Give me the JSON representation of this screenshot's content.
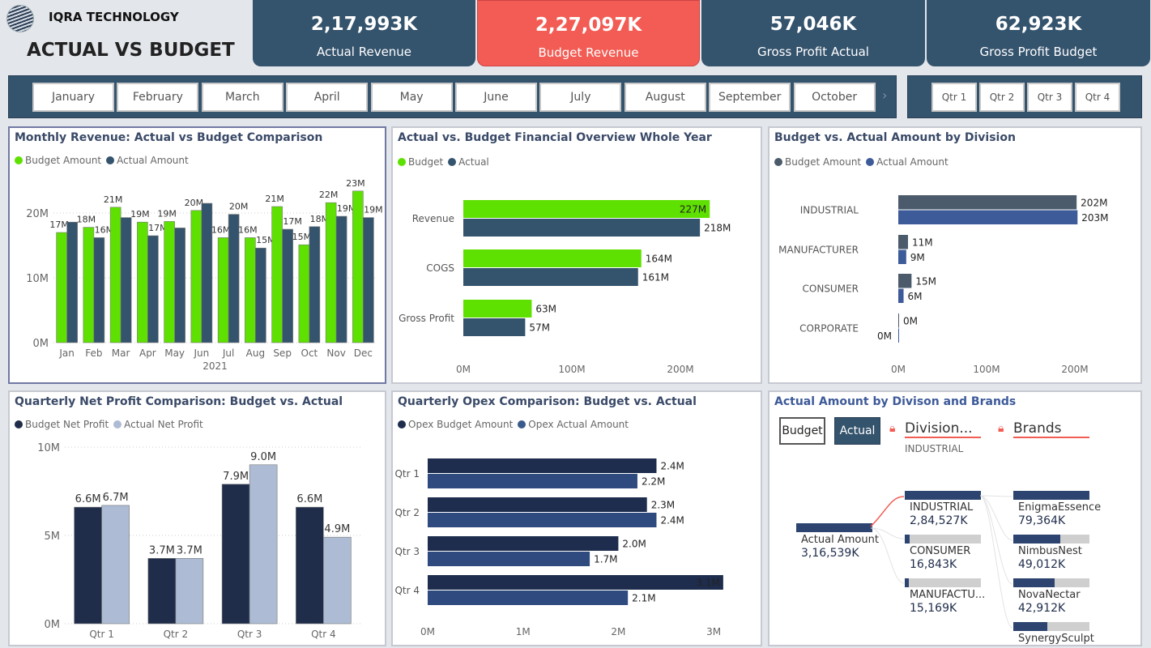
{
  "header": {
    "company": "IQRA TECHNOLOGY",
    "title": "ACTUAL VS BUDGET"
  },
  "kpis": [
    {
      "value": "2,17,993K",
      "label": "Actual Revenue",
      "color": "#34536d"
    },
    {
      "value": "2,27,097K",
      "label": "Budget Revenue",
      "color": "#f25c54"
    },
    {
      "value": "57,046K",
      "label": "Gross Profit Actual",
      "color": "#34536d"
    },
    {
      "value": "62,923K",
      "label": "Gross Profit Budget",
      "color": "#34536d"
    }
  ],
  "month_slicer": [
    "January",
    "February",
    "March",
    "April",
    "May",
    "June",
    "July",
    "August",
    "September",
    "October"
  ],
  "quarter_slicer": [
    "Qtr 1",
    "Qtr 2",
    "Qtr 3",
    "Qtr 4"
  ],
  "colors": {
    "budget_green": "#5ee000",
    "actual_slate": "#34536d",
    "net_budget": "#1f2d4b",
    "net_actual": "#adbcd4",
    "opex_budget": "#1e2d4d",
    "opex_actual": "#2e4a7e",
    "div_budget": "#4b5b6c",
    "div_actual": "#3d5a99"
  },
  "chart_data": [
    {
      "type": "bar",
      "title": "Monthly Revenue: Actual vs Budget Comparison",
      "xlabel": "2021",
      "categories": [
        "Jan",
        "Feb",
        "Mar",
        "Apr",
        "May",
        "Jun",
        "Jul",
        "Aug",
        "Sep",
        "Oct",
        "Nov",
        "Dec"
      ],
      "yticks": [
        "0M",
        "10M",
        "20M"
      ],
      "ylim": [
        0,
        25
      ],
      "grid": true,
      "legend": "top-left",
      "series": [
        {
          "name": "Budget Amount",
          "values": [
            17.0,
            17.8,
            20.9,
            18.6,
            18.7,
            20.4,
            16.2,
            16.2,
            21.0,
            15.1,
            21.6,
            23.4
          ],
          "labels": [
            "17M",
            "18M",
            "21M",
            "19M",
            "19M",
            "20M",
            "16M",
            "16M",
            "21M",
            "15M",
            "22M",
            "23M"
          ]
        },
        {
          "name": "Actual Amount",
          "values": [
            18.6,
            16.2,
            19.3,
            16.5,
            17.7,
            21.5,
            19.8,
            14.6,
            17.5,
            17.9,
            19.5,
            19.3
          ],
          "labels": [
            null,
            "16M",
            null,
            "17M",
            null,
            null,
            "20M",
            "15M",
            "17M",
            "18M",
            "19M",
            "19M"
          ]
        }
      ]
    },
    {
      "type": "bar",
      "orientation": "horizontal",
      "title": "Actual vs. Budget Financial Overview Whole Year",
      "categories": [
        "Revenue",
        "COGS",
        "Gross Profit"
      ],
      "xticks": [
        "0M",
        "100M",
        "200M"
      ],
      "xlim": [
        0,
        230
      ],
      "legend": "top-left",
      "series": [
        {
          "name": "Budget",
          "values": [
            227,
            164,
            63
          ],
          "labels": [
            "227M",
            "164M",
            "63M"
          ]
        },
        {
          "name": "Actual",
          "values": [
            218,
            161,
            57
          ],
          "labels": [
            "218M",
            "161M",
            "57M"
          ]
        }
      ]
    },
    {
      "type": "bar",
      "orientation": "horizontal",
      "title": "Budget vs. Actual Amount by Division",
      "categories": [
        "INDUSTRIAL",
        "MANUFACTURER",
        "CONSUMER",
        "CORPORATE"
      ],
      "xticks": [
        "0M",
        "100M",
        "200M"
      ],
      "xlim": [
        0,
        230
      ],
      "legend": "top-left",
      "series": [
        {
          "name": "Budget Amount",
          "values": [
            202,
            11,
            15,
            0
          ],
          "labels": [
            "202M",
            "11M",
            "15M",
            "0M"
          ]
        },
        {
          "name": "Actual Amount",
          "values": [
            203,
            9,
            6,
            0
          ],
          "labels": [
            "203M",
            "9M",
            "6M",
            "0M"
          ]
        }
      ]
    },
    {
      "type": "bar",
      "title": "Quarterly Net Profit Comparison: Budget vs. Actual",
      "categories": [
        "Qtr 1",
        "Qtr 2",
        "Qtr 3",
        "Qtr 4"
      ],
      "yticks": [
        "0M",
        "5M",
        "10M"
      ],
      "ylim": [
        0,
        10
      ],
      "grid": true,
      "legend": "top-left",
      "series": [
        {
          "name": "Budget Net Profit",
          "values": [
            6.6,
            3.7,
            7.9,
            6.6
          ],
          "labels": [
            "6.6M",
            "3.7M",
            "7.9M",
            "6.6M"
          ]
        },
        {
          "name": "Actual Net Profit",
          "values": [
            6.7,
            3.7,
            9.0,
            4.9
          ],
          "labels": [
            "6.7M",
            "3.7M",
            "9.0M",
            "4.9M"
          ]
        }
      ]
    },
    {
      "type": "bar",
      "orientation": "horizontal",
      "title": "Quarterly Opex Comparison: Budget vs. Actual",
      "categories": [
        "Qtr 1",
        "Qtr 2",
        "Qtr 3",
        "Qtr 4"
      ],
      "xticks": [
        "0M",
        "1M",
        "2M",
        "3M"
      ],
      "xlim": [
        0,
        3.1
      ],
      "legend": "top-left",
      "series": [
        {
          "name": "Opex Budget Amount",
          "values": [
            2.4,
            2.3,
            2.0,
            3.1
          ],
          "labels": [
            "2.4M",
            "2.3M",
            "2.0M",
            "3.1M"
          ]
        },
        {
          "name": "Opex Actual Amount",
          "values": [
            2.2,
            2.4,
            1.7,
            2.1
          ],
          "labels": [
            "2.2M",
            "2.4M",
            "1.7M",
            "2.1M"
          ]
        }
      ]
    }
  ],
  "decomp": {
    "title": "Actual Amount by Divison and Brands",
    "toggle": {
      "budget": "Budget",
      "actual": "Actual",
      "selected": "Actual"
    },
    "level1": {
      "header": "Division...",
      "selected": "INDUSTRIAL"
    },
    "level2": {
      "header": "Brands"
    },
    "root": {
      "label": "Actual Amount",
      "value": "3,16,539K"
    },
    "divisions": [
      {
        "label": "INDUSTRIAL",
        "value": "2,84,527K",
        "share": 1.0
      },
      {
        "label": "CONSUMER",
        "value": "16,843K",
        "share": 0.06
      },
      {
        "label": "MANUFACTU...",
        "value": "15,169K",
        "share": 0.05
      }
    ],
    "brands": [
      {
        "label": "EnigmaEssence",
        "value": "79,364K",
        "share": 1.0
      },
      {
        "label": "NimbusNest",
        "value": "49,012K",
        "share": 0.62
      },
      {
        "label": "NovaNectar",
        "value": "42,912K",
        "share": 0.54
      },
      {
        "label": "SynergySculpt",
        "value": "",
        "share": 0.45
      }
    ]
  }
}
